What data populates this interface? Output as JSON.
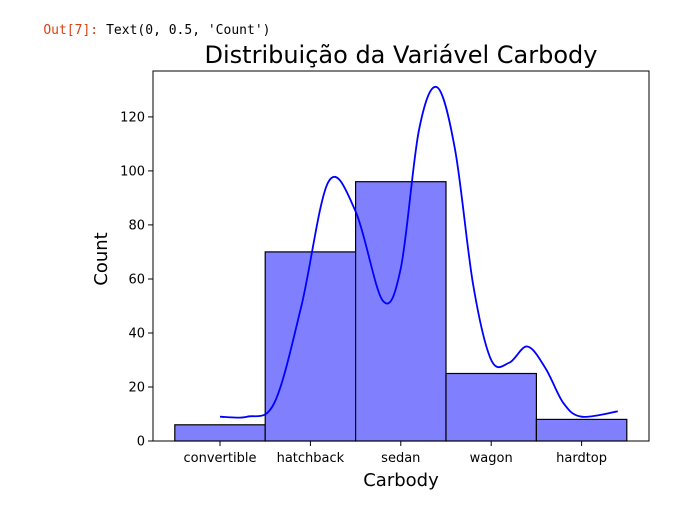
{
  "notebook": {
    "prompt": "Out[7]:",
    "output_text": "Text(0, 0.5, 'Count')"
  },
  "chart_data": {
    "type": "bar",
    "title": "Distribuição da Variável Carbody",
    "xlabel": "Carbody",
    "ylabel": "Count",
    "categories": [
      "convertible",
      "hatchback",
      "sedan",
      "wagon",
      "hardtop"
    ],
    "values": [
      6,
      70,
      96,
      25,
      8
    ],
    "ylim": [
      0,
      137
    ],
    "yticks": [
      0,
      20,
      40,
      60,
      80,
      100,
      120
    ],
    "bar_color": "#8080ff",
    "bar_edge_color": "#000000",
    "kde": {
      "color": "#0000ff",
      "x": [
        0.0,
        0.3,
        0.6,
        0.9,
        1.2,
        1.5,
        1.8,
        2.0,
        2.2,
        2.4,
        2.6,
        2.8,
        3.0,
        3.2,
        3.4,
        3.6,
        3.8,
        4.0,
        4.4
      ],
      "y": [
        9,
        9,
        14,
        50,
        96,
        85,
        52,
        64,
        115,
        131,
        108,
        58,
        30,
        29,
        35,
        27,
        14,
        9,
        11
      ]
    },
    "grid": false,
    "legend": "none"
  }
}
